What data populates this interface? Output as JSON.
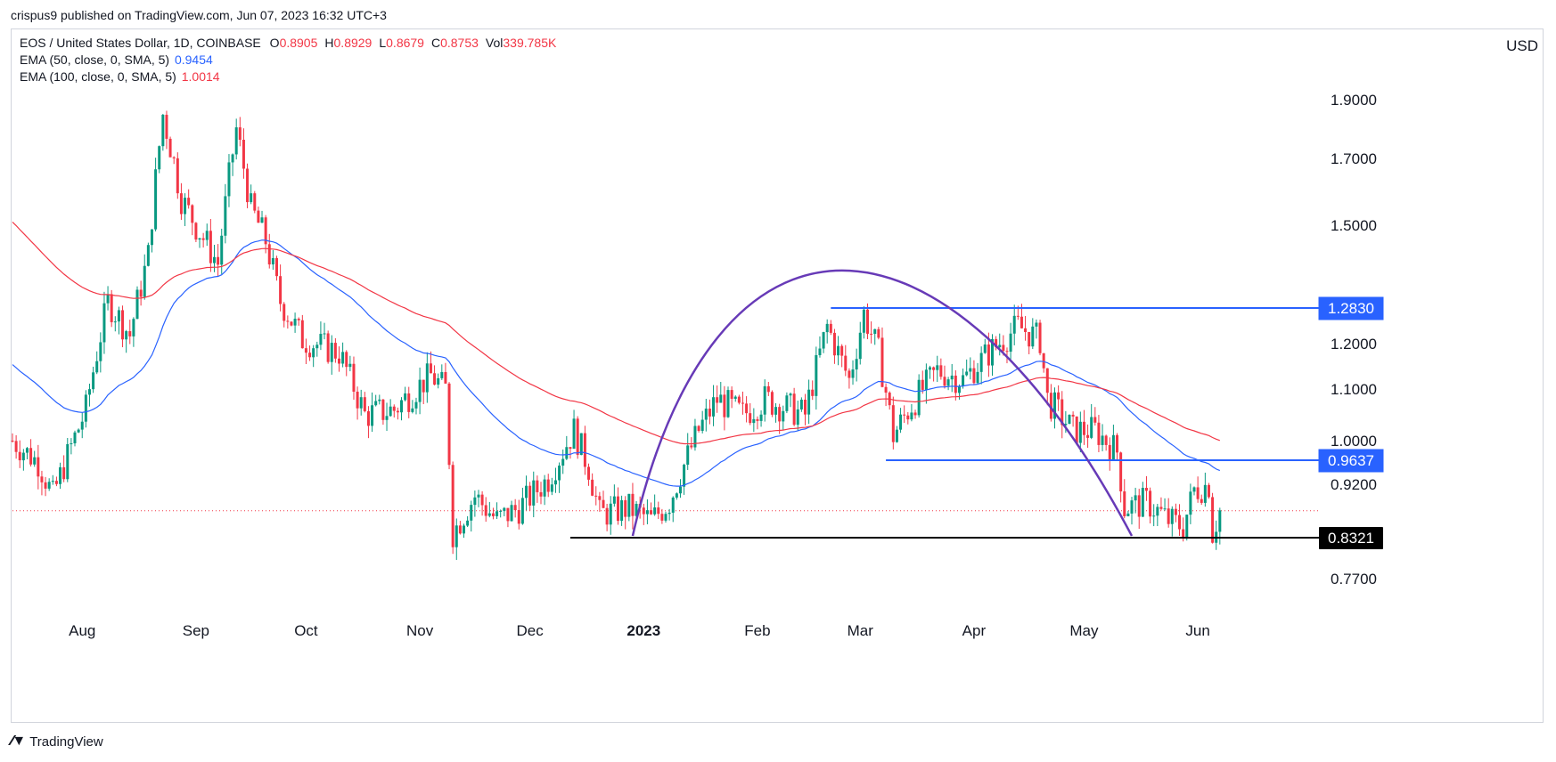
{
  "publisher": "crispus9 published on TradingView.com, Jun 07, 2023 16:32 UTC+3",
  "header": {
    "symbol": "EOS / United States Dollar, 1D, COINBASE",
    "ohlc": [
      {
        "k": "O",
        "v": "0.8905"
      },
      {
        "k": "H",
        "v": "0.8929"
      },
      {
        "k": "L",
        "v": "0.8679"
      },
      {
        "k": "C",
        "v": "0.8753"
      },
      {
        "k": "Vol",
        "v": "339.785K"
      }
    ],
    "ema50": {
      "label": "EMA (50, close, 0, SMA, 5)",
      "value": "0.9454",
      "color": "#2962ff"
    },
    "ema100": {
      "label": "EMA (100, close, 0, SMA, 5)",
      "value": "1.0014",
      "color": "#f23645"
    }
  },
  "currency": "USD",
  "footer": {
    "brand": "TradingView",
    "icon": "tradingview-logo-icon"
  },
  "colors": {
    "up": "#089981",
    "down": "#f23645",
    "ema50": "#2962ff",
    "ema100": "#f23645",
    "arc": "#673ab7",
    "level": "#2962ff",
    "support": "#000000"
  },
  "chart_data": {
    "type": "candlestick",
    "title": "EOS / United States Dollar, 1D, COINBASE",
    "currency": "USD",
    "ylim": [
      0.7,
      2.05
    ],
    "y_ticks": [
      "1.9000",
      "1.7000",
      "1.5000",
      "1.2000",
      "1.1000",
      "1.0000",
      "0.9200",
      "0.7700"
    ],
    "x_ticks": [
      "Aug",
      "Sep",
      "Oct",
      "Nov",
      "Dec",
      "2023",
      "Feb",
      "Mar",
      "Apr",
      "May",
      "Jun"
    ],
    "price_tags": [
      {
        "text": "1.2830",
        "value": 1.283,
        "style": "blue"
      },
      {
        "text": "0.9637",
        "value": 0.9637,
        "style": "blue"
      },
      {
        "text": "0.8321",
        "value": 0.8321,
        "style": "black"
      }
    ],
    "current_price": 0.8753,
    "key_points": [
      {
        "date": "2022-08-23",
        "price": 1.93,
        "note": "swing high"
      },
      {
        "date": "2022-11-10",
        "price": 0.79,
        "note": "swing low"
      },
      {
        "date": "2023-03-02",
        "price": 1.31,
        "note": "rounded top peak"
      },
      {
        "date": "2023-05-26",
        "price": 0.82,
        "note": "recent low"
      }
    ],
    "series": [
      {
        "name": "EMA (50, close, 0, SMA, 5)",
        "last": 0.9454
      },
      {
        "name": "EMA (100, close, 0, SMA, 5)",
        "last": 1.0014
      }
    ]
  }
}
